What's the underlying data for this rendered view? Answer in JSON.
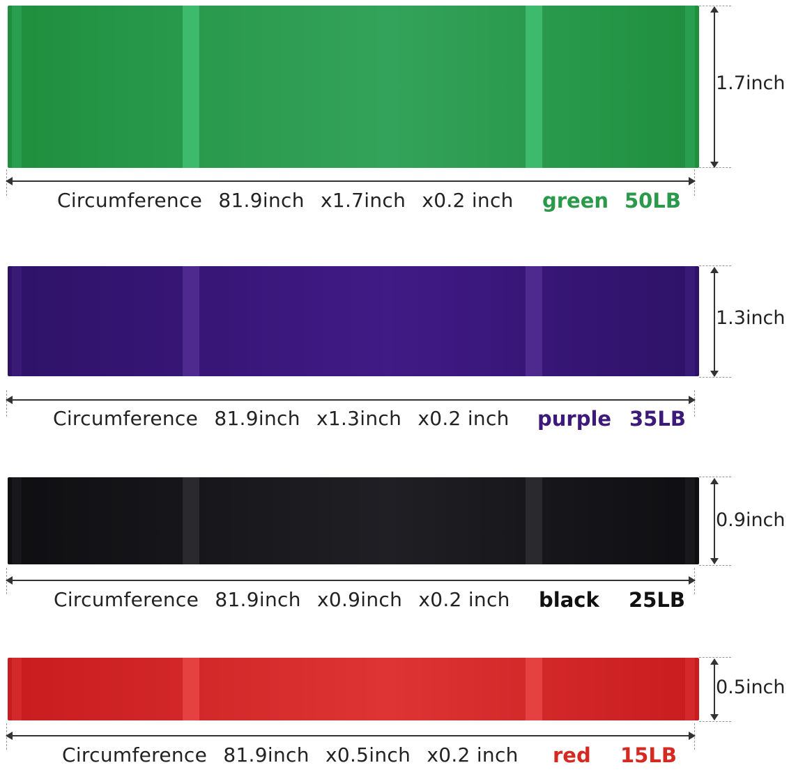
{
  "bands": [
    {
      "width_label": "1.7inch",
      "spec": [
        "Circumference",
        "81.9inch",
        "x1.7inch",
        "x0.2 inch"
      ],
      "color_name": "green",
      "load": "50LB",
      "colors": {
        "body_dark": "#1f8f3e",
        "body_light": "#34a35a",
        "strap": "#3dba6b",
        "text": "#2a9a4a"
      }
    },
    {
      "width_label": "1.3inch",
      "spec": [
        "Circumference",
        "81.9inch",
        "x1.3inch",
        "x0.2 inch"
      ],
      "color_name": "purple",
      "load": "35LB",
      "colors": {
        "body_dark": "#2e1268",
        "body_light": "#401a85",
        "strap": "#4e2a8e",
        "text": "#3d1a7a"
      }
    },
    {
      "width_label": "0.9inch",
      "spec": [
        "Circumference",
        "81.9inch",
        "x0.9inch",
        "x0.2 inch"
      ],
      "color_name": "black",
      "load": "25LB",
      "colors": {
        "body_dark": "#0f0f12",
        "body_light": "#1f1f24",
        "strap": "#2a2a2e",
        "text": "#111111"
      }
    },
    {
      "width_label": "0.5inch",
      "spec": [
        "Circumference",
        "81.9inch",
        "x0.5inch",
        "x0.2 inch"
      ],
      "color_name": "red",
      "load": "15LB",
      "colors": {
        "body_dark": "#c81c1e",
        "body_light": "#de3434",
        "strap": "#e54141",
        "text": "#d42a22"
      }
    }
  ]
}
